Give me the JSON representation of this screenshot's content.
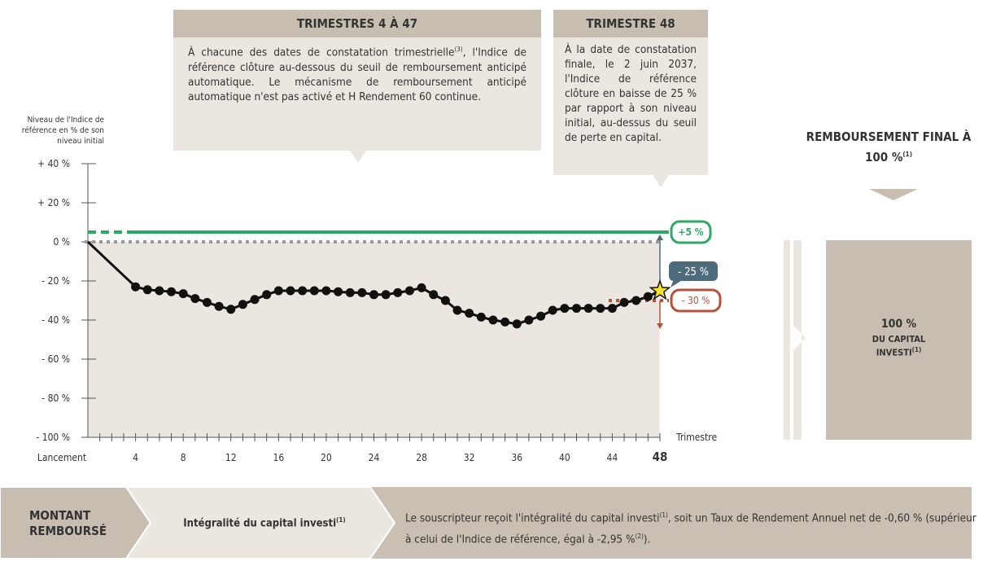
{
  "chart_data": {
    "type": "line",
    "ylabel": "Niveau de l'Indice de référence en % de son niveau initial",
    "xlabel": "Trimestre",
    "ylim": [
      -100,
      40
    ],
    "yticks": [
      {
        "value": 40,
        "label": "+ 40 %"
      },
      {
        "value": 20,
        "label": "+ 20 %"
      },
      {
        "value": 0,
        "label": "0 %"
      },
      {
        "value": -20,
        "label": "- 20 %"
      },
      {
        "value": -40,
        "label": "- 40 %"
      },
      {
        "value": -60,
        "label": "- 60 %"
      },
      {
        "value": -80,
        "label": "- 80 %"
      },
      {
        "value": -100,
        "label": "- 100 %"
      }
    ],
    "xlim": [
      0,
      48
    ],
    "xticks": [
      {
        "value": 0,
        "label": "Lancement"
      },
      4,
      8,
      12,
      16,
      20,
      24,
      28,
      32,
      36,
      40,
      44,
      48
    ],
    "xminorticks": [
      1,
      2,
      3,
      4,
      5,
      6,
      7,
      8,
      9,
      10,
      11,
      12,
      13,
      14,
      15,
      16,
      17,
      18,
      19,
      20,
      21,
      22,
      23,
      24,
      25,
      26,
      27,
      28,
      29,
      30,
      31,
      32,
      33,
      34,
      35,
      36,
      37,
      38,
      39,
      40,
      41,
      42,
      43,
      44,
      45,
      46,
      47,
      48
    ],
    "series": [
      {
        "color": "#111111",
        "x": [
          0,
          4,
          5,
          6,
          7,
          8,
          9,
          10,
          11,
          12,
          13,
          14,
          15,
          16,
          17,
          18,
          19,
          20,
          21,
          22,
          23,
          24,
          25,
          26,
          27,
          28,
          29,
          30,
          31,
          32,
          33,
          34,
          35,
          36,
          37,
          38,
          39,
          40,
          41,
          42,
          43,
          44,
          45,
          46,
          47,
          48
        ],
        "values": [
          0,
          -23,
          -24.5,
          -25,
          -25.5,
          -26.5,
          -29,
          -31,
          -33,
          -34.5,
          -32,
          -29.5,
          -27,
          -25,
          -25,
          -25,
          -25,
          -25,
          -25.5,
          -26,
          -26,
          -27,
          -27,
          -26,
          -25,
          -23.5,
          -27,
          -30,
          -35,
          -36.5,
          -38.5,
          -40,
          -41,
          -42,
          -40,
          -38,
          -35,
          -34,
          -34,
          -34,
          -34,
          -34,
          -31,
          -30,
          -28,
          -25
        ]
      }
    ],
    "levels": [
      {
        "value": 5,
        "label": "+5 %",
        "color": "#2ea866"
      },
      {
        "value": -25,
        "label": "- 25 %",
        "color": "#4d6b7a"
      },
      {
        "value": -30,
        "label": "- 30 %",
        "color": "#b5533a"
      }
    ],
    "reference_level": 0
  },
  "boxes": [
    {
      "title": "TRIMESTRES 4 À 47",
      "text": [
        "À chacune des dates de constatation trimestrielle",
        "(3)",
        ", l'Indice de référence clôture au-dessous du seuil de remboursement anticipé automatique. Le mécanisme de remboursement anticipé automatique n'est pas activé et H Rendement 60 continue."
      ]
    },
    {
      "title": "TRIMESTRE 48",
      "text": [
        "À la date de constatation finale, le 2 juin 2037, l'Indice de référence clôture en baisse de 25 % par rapport à son niveau initial, au-dessus du seuil de perte en capital."
      ]
    }
  ],
  "final": {
    "title": "REMBOURSEMENT FINAL À 100 %",
    "note": "(1)",
    "amount": "100 %",
    "caption": "DU CAPITAL INVESTI",
    "caption_note": "(1)"
  },
  "footer": {
    "label": "MONTANT REMBOURSÉ",
    "middle": "Intégralité du capital investi",
    "middle_note": "(1)",
    "text": [
      "Le souscripteur reçoit l'intégralité du capital investi",
      "(1)",
      ", soit un Taux de Rendement Annuel net de -0,60 % (supérieur à celui de l'Indice de référence, égal à -2,95 %",
      "(2)",
      ")."
    ]
  }
}
